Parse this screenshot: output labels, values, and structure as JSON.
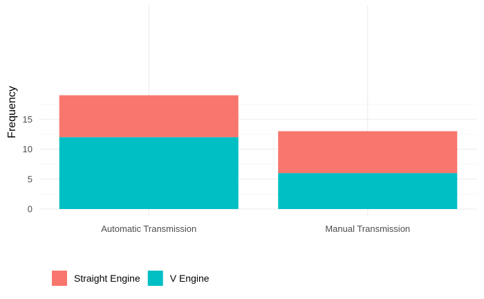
{
  "chart_data": {
    "type": "bar",
    "stacked": true,
    "categories": [
      "Automatic Transmission",
      "Manual Transmission"
    ],
    "series": [
      {
        "name": "V Engine",
        "values": [
          12,
          6
        ],
        "color": "#00BFC4"
      },
      {
        "name": "Straight Engine",
        "values": [
          7,
          7
        ],
        "color": "#F8766D"
      }
    ],
    "legend_order": [
      "Straight Engine",
      "V Engine"
    ],
    "title": "",
    "xlabel": "",
    "ylabel": "Frequency",
    "ylim": [
      0,
      19
    ],
    "yticks": [
      0,
      5,
      10,
      15
    ],
    "grid": true,
    "legend_position": "bottom-left"
  }
}
